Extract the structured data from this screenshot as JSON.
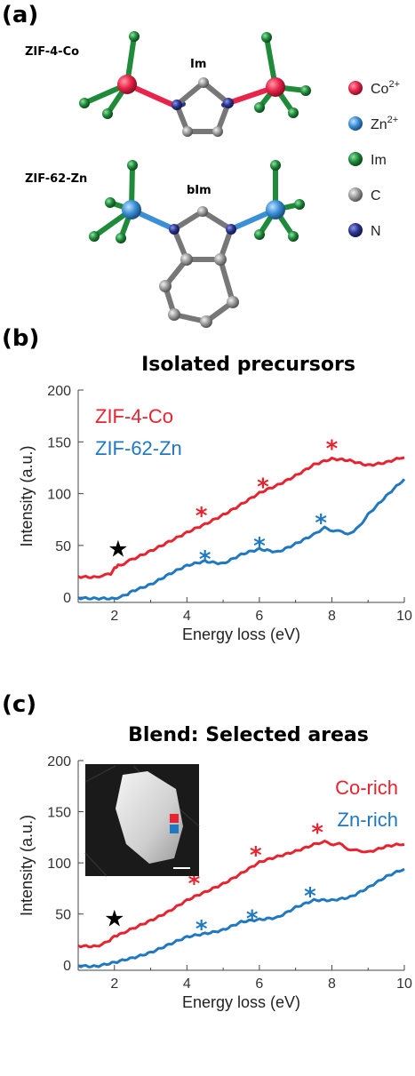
{
  "panels": {
    "a": "(a)",
    "b": "(b)",
    "c": "(c)"
  },
  "molecules": {
    "top_name": "ZIF-4-Co",
    "top_linker": "Im",
    "bottom_name": "ZIF-62-Zn",
    "bottom_linker": "bIm"
  },
  "atom_key": [
    {
      "label": "Co",
      "sup": "2+",
      "color": "#e8244a"
    },
    {
      "label": "Zn",
      "sup": "2+",
      "color": "#3a8fd6"
    },
    {
      "label": "Im",
      "sup": "",
      "color": "#1f8a3a"
    },
    {
      "label": "C",
      "sup": "",
      "color": "#9a9a9a"
    },
    {
      "label": "N",
      "sup": "",
      "color": "#2c3590"
    }
  ],
  "colors": {
    "red": "#e6232e",
    "blue": "#1f78c1"
  },
  "chart_data": [
    {
      "type": "line",
      "title": "Isolated precursors",
      "xlabel": "Energy loss (eV)",
      "ylabel": "Intensity (a.u.)",
      "xlim": [
        1,
        10
      ],
      "ylim": [
        -5,
        200
      ],
      "xticks": [
        2,
        4,
        6,
        8,
        10
      ],
      "yticks": [
        0,
        50,
        100,
        150,
        200
      ],
      "series": [
        {
          "name": "ZIF-4-Co",
          "color": "#e6232e",
          "x": [
            1,
            1.5,
            1.9,
            2.0,
            2.1,
            2.5,
            3,
            3.5,
            4,
            4.5,
            5,
            5.5,
            6,
            6.5,
            7,
            7.5,
            8,
            8.5,
            9,
            9.5,
            10
          ],
          "y": [
            20,
            20,
            22,
            28,
            31,
            36,
            45,
            54,
            62,
            70,
            80,
            90,
            100,
            108,
            118,
            128,
            133,
            132,
            128,
            130,
            135
          ]
        },
        {
          "name": "ZIF-62-Zn",
          "color": "#1f78c1",
          "x": [
            1,
            1.5,
            2,
            2.3,
            2.5,
            3,
            3.5,
            4,
            4.5,
            5,
            5.5,
            6,
            6.5,
            7,
            7.5,
            7.8,
            8.2,
            8.6,
            9,
            9.5,
            10
          ],
          "y": [
            0,
            -1,
            -2,
            2,
            6,
            13,
            22,
            30,
            35,
            33,
            41,
            46,
            44,
            52,
            60,
            67,
            63,
            62,
            80,
            97,
            114
          ]
        }
      ],
      "markers": [
        {
          "symbol": "★",
          "color": "#000000",
          "x": 2.1,
          "y": 45
        },
        {
          "symbol": "*",
          "color": "#e6232e",
          "x": 4.4,
          "y": 85
        },
        {
          "symbol": "*",
          "color": "#e6232e",
          "x": 6.1,
          "y": 113
        },
        {
          "symbol": "*",
          "color": "#e6232e",
          "x": 8.0,
          "y": 150
        },
        {
          "symbol": "*",
          "color": "#1f78c1",
          "x": 4.5,
          "y": 43
        },
        {
          "symbol": "*",
          "color": "#1f78c1",
          "x": 6.0,
          "y": 56
        },
        {
          "symbol": "*",
          "color": "#1f78c1",
          "x": 7.7,
          "y": 78
        }
      ]
    },
    {
      "type": "line",
      "title": "Blend: Selected areas",
      "xlabel": "Energy loss (eV)",
      "ylabel": "Intensity (a.u.)",
      "xlim": [
        1,
        10
      ],
      "ylim": [
        -5,
        200
      ],
      "xticks": [
        2,
        4,
        6,
        8,
        10
      ],
      "yticks": [
        0,
        50,
        100,
        150,
        200
      ],
      "series": [
        {
          "name": "Co-rich",
          "color": "#e6232e",
          "x": [
            1,
            1.5,
            1.8,
            2.0,
            2.2,
            2.5,
            3,
            3.5,
            4,
            4.5,
            5,
            5.5,
            6,
            6.5,
            7,
            7.5,
            7.8,
            8.2,
            8.6,
            9,
            9.5,
            10
          ],
          "y": [
            19,
            19,
            22,
            28,
            31,
            35,
            44,
            53,
            63,
            71,
            80,
            90,
            100,
            106,
            112,
            118,
            120,
            118,
            112,
            111,
            116,
            118
          ]
        },
        {
          "name": "Zn-rich",
          "color": "#1f78c1",
          "x": [
            1,
            1.5,
            2,
            2.5,
            3,
            3.5,
            4,
            4.5,
            5,
            5.5,
            6,
            6.5,
            7,
            7.5,
            8,
            8.5,
            9,
            9.5,
            10
          ],
          "y": [
            0,
            -1,
            2,
            7,
            13,
            20,
            27,
            31,
            35,
            42,
            44,
            47,
            57,
            63,
            63,
            67,
            76,
            86,
            94
          ]
        }
      ],
      "markers": [
        {
          "symbol": "★",
          "color": "#000000",
          "x": 2.0,
          "y": 44
        },
        {
          "symbol": "*",
          "color": "#e6232e",
          "x": 4.2,
          "y": 86
        },
        {
          "symbol": "*",
          "color": "#e6232e",
          "x": 5.9,
          "y": 114
        },
        {
          "symbol": "*",
          "color": "#e6232e",
          "x": 7.6,
          "y": 136
        },
        {
          "symbol": "*",
          "color": "#1f78c1",
          "x": 4.4,
          "y": 42
        },
        {
          "symbol": "*",
          "color": "#1f78c1",
          "x": 5.8,
          "y": 52
        },
        {
          "symbol": "*",
          "color": "#1f78c1",
          "x": 7.4,
          "y": 74
        }
      ]
    }
  ]
}
